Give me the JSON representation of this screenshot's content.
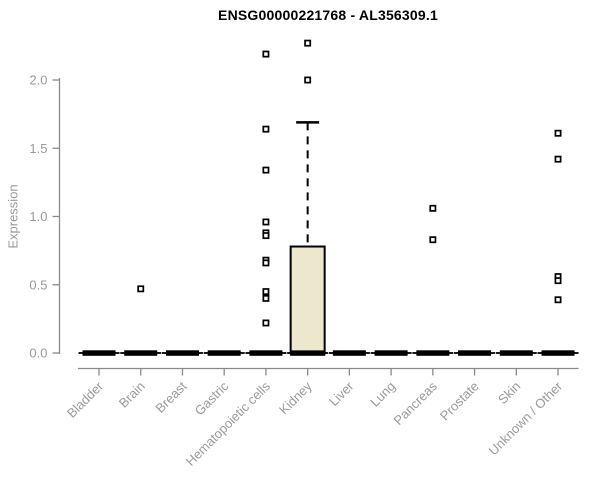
{
  "chart_data": {
    "type": "boxplot",
    "title": "ENSG00000221768 - AL356309.1",
    "ylabel": "Expression",
    "xlabel": "",
    "grid": false,
    "legend": "none",
    "ylim": [
      0,
      2.27
    ],
    "ytick_values": [
      0,
      0.5,
      1.0,
      1.5,
      2.0
    ],
    "ytick_labels": [
      "0.0",
      "0.5",
      "1.0",
      "1.5",
      "2.0"
    ],
    "colors": {
      "box_fill": "#ece7cd",
      "box_stroke": "#000000",
      "axis": "#8a8a8a",
      "tick_label": "#9a9a9a",
      "outlier_stroke": "#000000",
      "outlier_fill": "#ffffff",
      "title": "#000000"
    },
    "categories": [
      "Bladder",
      "Brain",
      "Breast",
      "Gastric",
      "Hematopoietic cells",
      "Kidney",
      "Liver",
      "Lung",
      "Pancreas",
      "Prostate",
      "Skin",
      "Unknown / Other"
    ],
    "series": [
      {
        "category": "Bladder",
        "whisker_low": 0,
        "q1": 0,
        "median": 0,
        "q3": 0,
        "whisker_high": 0,
        "outliers": []
      },
      {
        "category": "Brain",
        "whisker_low": 0,
        "q1": 0,
        "median": 0,
        "q3": 0,
        "whisker_high": 0,
        "outliers": [
          0.47
        ]
      },
      {
        "category": "Breast",
        "whisker_low": 0,
        "q1": 0,
        "median": 0,
        "q3": 0,
        "whisker_high": 0,
        "outliers": []
      },
      {
        "category": "Gastric",
        "whisker_low": 0,
        "q1": 0,
        "median": 0,
        "q3": 0,
        "whisker_high": 0,
        "outliers": []
      },
      {
        "category": "Hematopoietic cells",
        "whisker_low": 0,
        "q1": 0,
        "median": 0,
        "q3": 0,
        "whisker_high": 0,
        "outliers": [
          2.19,
          1.64,
          1.34,
          0.96,
          0.88,
          0.86,
          0.68,
          0.66,
          0.45,
          0.4,
          0.22
        ]
      },
      {
        "category": "Kidney",
        "whisker_low": 0,
        "q1": 0,
        "median": 0,
        "q3": 0.78,
        "whisker_high": 1.69,
        "outliers": [
          2.27,
          2.0
        ]
      },
      {
        "category": "Liver",
        "whisker_low": 0,
        "q1": 0,
        "median": 0,
        "q3": 0,
        "whisker_high": 0,
        "outliers": []
      },
      {
        "category": "Lung",
        "whisker_low": 0,
        "q1": 0,
        "median": 0,
        "q3": 0,
        "whisker_high": 0,
        "outliers": []
      },
      {
        "category": "Pancreas",
        "whisker_low": 0,
        "q1": 0,
        "median": 0,
        "q3": 0,
        "whisker_high": 0,
        "outliers": [
          1.06,
          0.83
        ]
      },
      {
        "category": "Prostate",
        "whisker_low": 0,
        "q1": 0,
        "median": 0,
        "q3": 0,
        "whisker_high": 0,
        "outliers": []
      },
      {
        "category": "Skin",
        "whisker_low": 0,
        "q1": 0,
        "median": 0,
        "q3": 0,
        "whisker_high": 0,
        "outliers": []
      },
      {
        "category": "Unknown / Other",
        "whisker_low": 0,
        "q1": 0,
        "median": 0,
        "q3": 0,
        "whisker_high": 0,
        "outliers": [
          1.61,
          1.42,
          0.56,
          0.53,
          0.39
        ]
      }
    ]
  }
}
